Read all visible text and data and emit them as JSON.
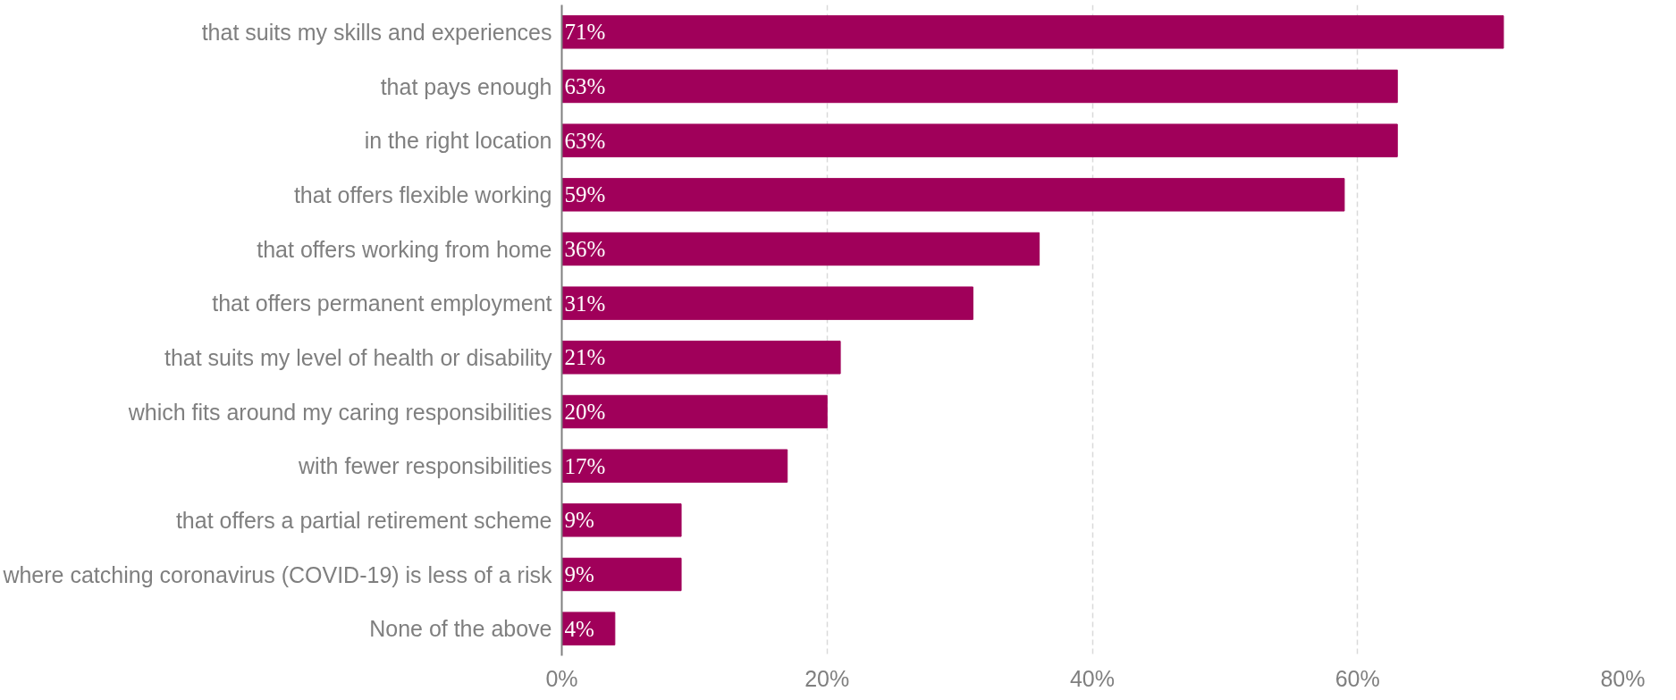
{
  "chart_data": {
    "type": "bar",
    "orientation": "horizontal",
    "categories": [
      "that suits my skills and experiences",
      "that pays enough",
      "in the right location",
      "that offers flexible working",
      "that offers working from home",
      "that offers permanent employment",
      "that suits my level of health or disability",
      "which fits around my caring responsibilities",
      "with fewer responsibilities",
      "that offers a partial retirement scheme",
      "where catching coronavirus (COVID-19) is less of a risk",
      "None of the above"
    ],
    "values": [
      71,
      63,
      63,
      59,
      36,
      31,
      21,
      20,
      17,
      9,
      9,
      4
    ],
    "value_labels": [
      "71%",
      "63%",
      "63%",
      "59%",
      "36%",
      "31%",
      "21%",
      "20%",
      "17%",
      "9%",
      "9%",
      "4%"
    ],
    "color": "#a0005a",
    "xlim": [
      0,
      80
    ],
    "xticks": [
      {
        "value": 0,
        "label": "0%"
      },
      {
        "value": 20,
        "label": "20%"
      },
      {
        "value": 40,
        "label": "40%"
      },
      {
        "value": 60,
        "label": "60%"
      },
      {
        "value": 80,
        "label": "80%"
      }
    ],
    "grid": "x"
  }
}
